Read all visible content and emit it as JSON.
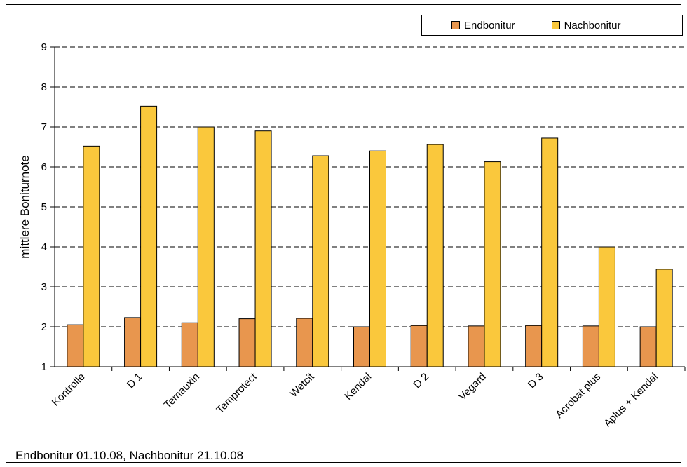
{
  "chart_data": {
    "type": "bar",
    "categories": [
      "Kontrolle",
      "D 1",
      "Temauxin",
      "Temprotect",
      "Wetcit",
      "Kendal",
      "D 2",
      "Vegard",
      "D 3",
      "Acrobat plus",
      "Aplus + Kendal"
    ],
    "series": [
      {
        "name": "Endbonitur",
        "color": "#E8964E",
        "values": [
          2.05,
          2.23,
          2.1,
          2.2,
          2.21,
          2.0,
          2.03,
          2.02,
          2.03,
          2.02,
          2.0
        ]
      },
      {
        "name": "Nachbonitur",
        "color": "#FAC83C",
        "values": [
          6.52,
          7.52,
          7.0,
          6.9,
          6.28,
          6.4,
          6.56,
          6.13,
          6.72,
          4.0,
          3.44
        ]
      }
    ],
    "ylabel": "mittlere Boniturnote",
    "xlabel": "",
    "ylim": [
      1,
      9
    ],
    "yticks": [
      1,
      2,
      3,
      4,
      5,
      6,
      7,
      8,
      9
    ],
    "grid": "horizontal-dashed",
    "legend_position": "top-right"
  },
  "footnote": "Endbonitur 01.10.08, Nachbonitur 21.10.08"
}
